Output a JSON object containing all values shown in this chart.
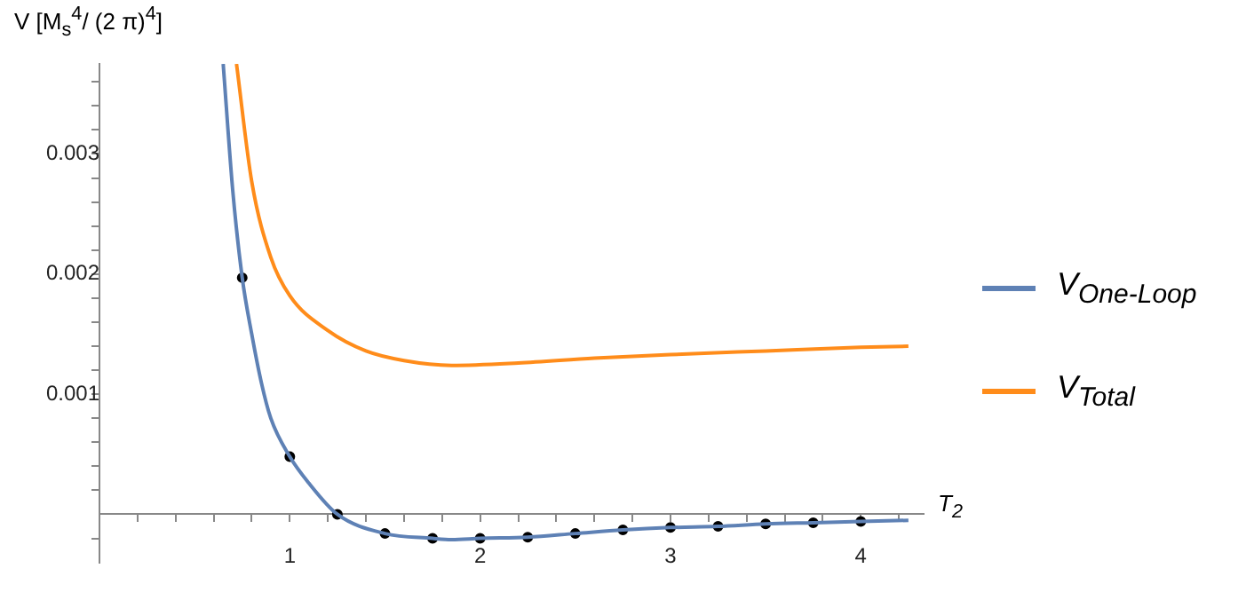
{
  "chart_data": {
    "type": "line",
    "ylabel": "V [M$_{s}$$^{4}$/ (2 π)$^{4}$]",
    "xlabel": "T$_{2}$",
    "xlim": [
      0,
      4.33
    ],
    "xticks": [
      {
        "value": 0.2,
        "label": null
      },
      {
        "value": 0.4,
        "label": null
      },
      {
        "value": 0.6,
        "label": null
      },
      {
        "value": 0.8,
        "label": null
      },
      1,
      {
        "value": 1.2,
        "label": null
      },
      {
        "value": 1.4,
        "label": null
      },
      {
        "value": 1.6,
        "label": null
      },
      {
        "value": 1.8,
        "label": null
      },
      2,
      {
        "value": 2.2,
        "label": null
      },
      {
        "value": 2.4,
        "label": null
      },
      {
        "value": 2.6,
        "label": null
      },
      {
        "value": 2.8,
        "label": null
      },
      3,
      {
        "value": 3.2,
        "label": null
      },
      {
        "value": 3.4,
        "label": null
      },
      {
        "value": 3.6,
        "label": null
      },
      {
        "value": 3.8,
        "label": null
      },
      4,
      {
        "value": 4.2,
        "label": null
      }
    ],
    "ylim": [
      -0.0004,
      0.00375
    ],
    "yticks": [
      {
        "value": -0.0002,
        "label": null
      },
      {
        "value": 0.0002,
        "label": null
      },
      {
        "value": 0.0004,
        "label": null
      },
      {
        "value": 0.0006,
        "label": null
      },
      {
        "value": 0.0008,
        "label": null
      },
      0.001,
      {
        "value": 0.0012,
        "label": null
      },
      {
        "value": 0.0014,
        "label": null
      },
      {
        "value": 0.0016,
        "label": null
      },
      {
        "value": 0.0018,
        "label": null
      },
      0.002,
      {
        "value": 0.0022,
        "label": null
      },
      {
        "value": 0.0024,
        "label": null
      },
      {
        "value": 0.0026,
        "label": null
      },
      {
        "value": 0.0028,
        "label": null
      },
      0.003,
      {
        "value": 0.0032,
        "label": null
      },
      {
        "value": 0.0034,
        "label": null
      },
      {
        "value": 0.0036,
        "label": null
      }
    ],
    "grid": false,
    "legend": "right",
    "series": [
      {
        "name": "V$_{One-Loop}$",
        "color": "#5e81b5",
        "type": "line",
        "x": [
          0.65,
          0.7,
          0.75,
          0.8,
          0.85,
          0.9,
          1.0,
          1.1,
          1.25,
          1.5,
          1.75,
          1.85,
          2.0,
          2.25,
          2.5,
          2.75,
          3.0,
          3.25,
          3.5,
          3.75,
          4.0,
          4.25
        ],
        "values": [
          0.00375,
          0.0027,
          0.00197,
          0.0015,
          0.0011,
          0.0008,
          0.00048,
          0.00026,
          0,
          -0.00016,
          -0.0002,
          -0.00021,
          -0.0002,
          -0.00019,
          -0.00016,
          -0.00013,
          -0.00011,
          -0.0001,
          -8e-05,
          -7e-05,
          -6e-05,
          -5e-05
        ]
      },
      {
        "name": "V$_{Total}$",
        "color": "#ff8c1a",
        "type": "line",
        "x": [
          0.72,
          0.8,
          0.9,
          1.0,
          1.2,
          1.4,
          1.6,
          1.85,
          2.2,
          2.6,
          3.0,
          3.5,
          4.0,
          4.25
        ],
        "values": [
          0.00375,
          0.00277,
          0.00214,
          0.00182,
          0.00153,
          0.00136,
          0.00128,
          0.00124,
          0.00126,
          0.0013,
          0.00133,
          0.00136,
          0.00139,
          0.0014
        ]
      },
      {
        "color": "#000000",
        "type": "scatter",
        "x": [
          0.75,
          1.0,
          1.25,
          1.5,
          1.75,
          2.0,
          2.25,
          2.5,
          2.75,
          3.0,
          3.25,
          3.5,
          3.75,
          4.0
        ],
        "values": [
          0.00197,
          0.00048,
          0,
          -0.00016,
          -0.0002,
          -0.0002,
          -0.00019,
          -0.00016,
          -0.00013,
          -0.00011,
          -0.0001,
          -8e-05,
          -7e-05,
          -6e-05
        ]
      }
    ]
  }
}
